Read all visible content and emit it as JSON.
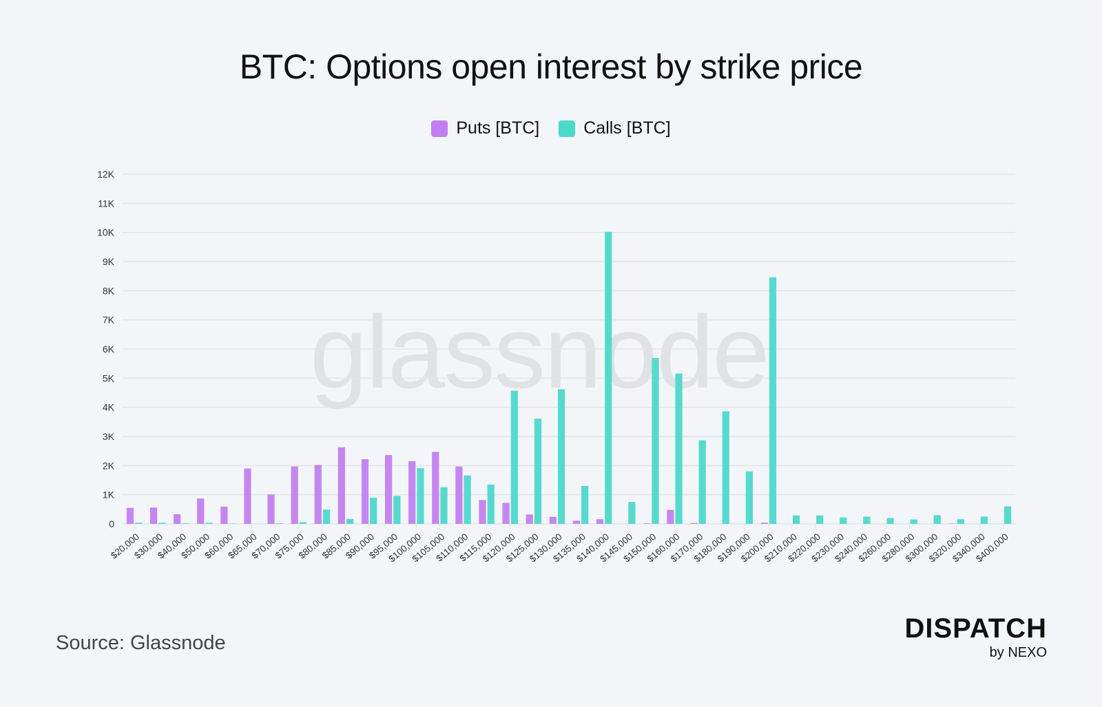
{
  "chart_data": {
    "type": "bar",
    "title": "BTC: Options open interest by strike price",
    "xlabel": "",
    "ylabel": "",
    "ylim": [
      0,
      12000
    ],
    "yticks": [
      "0",
      "1K",
      "2K",
      "3K",
      "4K",
      "5K",
      "6K",
      "7K",
      "8K",
      "9K",
      "10K",
      "11K",
      "12K"
    ],
    "grid": true,
    "legend_position": "top-center",
    "categories": [
      "$20,000",
      "$30,000",
      "$40,000",
      "$50,000",
      "$60,000",
      "$65,000",
      "$70,000",
      "$75,000",
      "$80,000",
      "$85,000",
      "$90,000",
      "$95,000",
      "$100,000",
      "$105,000",
      "$110,000",
      "$115,000",
      "$120,000",
      "$125,000",
      "$130,000",
      "$135,000",
      "$140,000",
      "$145,000",
      "$150,000",
      "$160,000",
      "$170,000",
      "$180,000",
      "$190,000",
      "$200,000",
      "$210,000",
      "$220,000",
      "$230,000",
      "$240,000",
      "$260,000",
      "$280,000",
      "$300,000",
      "$320,000",
      "$340,000",
      "$400,000"
    ],
    "series": [
      {
        "name": "Puts [BTC]",
        "color": "#c27ff0",
        "values": [
          550,
          560,
          330,
          870,
          590,
          1900,
          1010,
          1970,
          2020,
          2630,
          2220,
          2360,
          2150,
          2470,
          1970,
          820,
          720,
          320,
          240,
          110,
          160,
          0,
          20,
          480,
          30,
          0,
          0,
          40,
          0,
          0,
          0,
          0,
          0,
          0,
          0,
          10,
          0,
          0
        ]
      },
      {
        "name": "Calls [BTC]",
        "color": "#4dd8cc",
        "values": [
          40,
          40,
          20,
          40,
          10,
          0,
          20,
          60,
          490,
          170,
          900,
          960,
          1910,
          1260,
          1660,
          1350,
          4570,
          3610,
          4620,
          1300,
          10020,
          750,
          5690,
          5160,
          2870,
          3860,
          1800,
          8460,
          290,
          290,
          220,
          250,
          200,
          150,
          300,
          160,
          250,
          600
        ]
      }
    ]
  },
  "watermark": "glassnode",
  "source": "Source: Glassnode",
  "logo": {
    "main": "DISPATCH",
    "sub": "by NEXO"
  }
}
